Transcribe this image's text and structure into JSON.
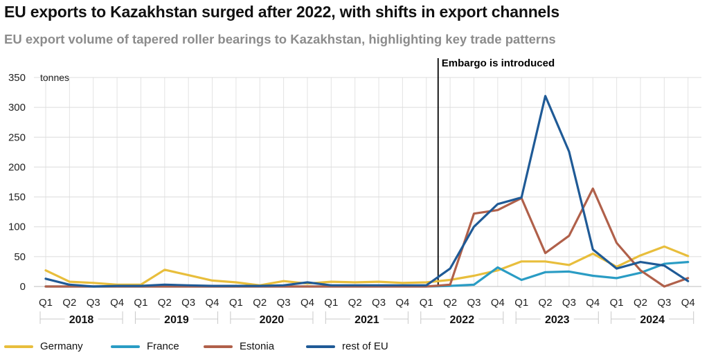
{
  "title": "EU exports to Kazakhstan surged after 2022, with shifts in export channels",
  "subtitle": "EU export volume of tapered roller bearings to Kazakhstan, highlighting key trade patterns",
  "chart_data": {
    "type": "line",
    "unit_label": "tonnes",
    "ylim": [
      0,
      350
    ],
    "yticks": [
      0,
      50,
      100,
      150,
      200,
      250,
      300,
      350
    ],
    "grid": true,
    "legend_position": "bottom",
    "annotation": "Embargo is introduced",
    "annotation_after_quarter": "2022 Q1",
    "years": [
      "2018",
      "2019",
      "2020",
      "2021",
      "2022",
      "2023",
      "2024"
    ],
    "quarters": [
      "Q1",
      "Q2",
      "Q3",
      "Q4"
    ],
    "series": [
      {
        "name": "Germany",
        "color": "#e8be3c",
        "values": [
          27,
          8,
          6,
          3,
          3,
          28,
          19,
          10,
          7,
          2,
          9,
          5,
          8,
          7,
          8,
          6,
          7,
          11,
          18,
          27,
          42,
          42,
          36,
          55,
          33,
          52,
          67,
          51
        ]
      },
      {
        "name": "France",
        "color": "#2a9cc4",
        "values": [
          0,
          0,
          0,
          0,
          0,
          0,
          0,
          0,
          0,
          0,
          0,
          0,
          0,
          0,
          0,
          0,
          0,
          1,
          3,
          32,
          11,
          24,
          25,
          18,
          14,
          23,
          38,
          41
        ]
      },
      {
        "name": "Estonia",
        "color": "#b0604a",
        "values": [
          0,
          0,
          0,
          0,
          0,
          0,
          0,
          0,
          0,
          0,
          0,
          0,
          0,
          0,
          0,
          0,
          0,
          3,
          122,
          128,
          148,
          56,
          85,
          164,
          73,
          27,
          0,
          14
        ]
      },
      {
        "name": "rest of EU",
        "color": "#1f5a96",
        "values": [
          13,
          3,
          0,
          1,
          1,
          3,
          2,
          1,
          1,
          1,
          2,
          7,
          2,
          2,
          2,
          2,
          2,
          30,
          100,
          138,
          149,
          319,
          226,
          62,
          30,
          41,
          35,
          9
        ]
      }
    ]
  }
}
